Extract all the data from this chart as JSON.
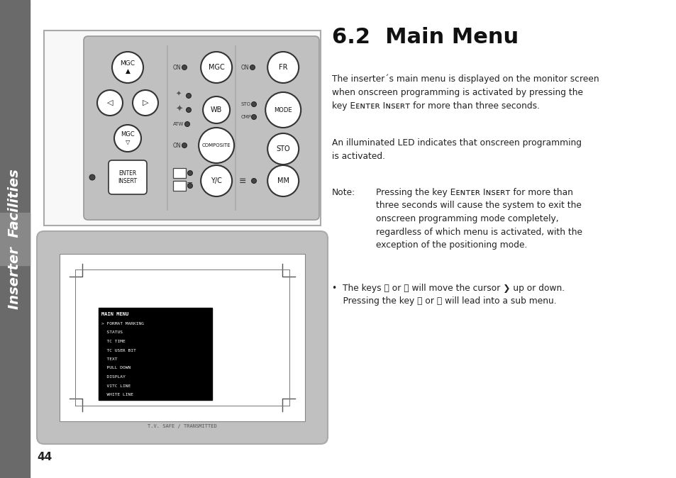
{
  "page_bg": "#ffffff",
  "sidebar_bg": "#6a6a6a",
  "sidebar_text": "Inserter  Facilities",
  "sidebar_text_color": "#ffffff",
  "page_number": "44",
  "title": "6.2  Main Menu",
  "panel_bg": "#c0c0c0",
  "monitor_outer_bg": "#c0c0c0",
  "menu_title": "MAIN MENU",
  "menu_items": [
    "> FORMAT MARKING",
    "  STATUS",
    "  TC TIME",
    "  TC USER BIT",
    "  TEXT",
    "  PULL DOWN",
    "  DISPLAY",
    "  VITC LINE",
    "  WHITE LINE"
  ],
  "tv_safe_text": "T.V. SAFE / TRANSMITTED"
}
